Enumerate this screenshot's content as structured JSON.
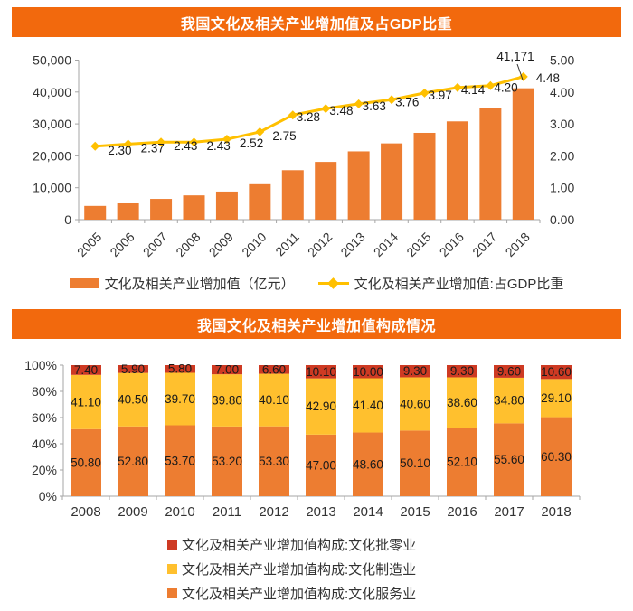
{
  "ui": {
    "banner_color": "#F2690D",
    "axis_color": "#A6A6A6",
    "tick_text_color": "#333333",
    "data_label_color": "#1A1A1A"
  },
  "chart_data": [
    {
      "type": "combo_bar_line",
      "title": "我国文化及相关产业增加值及占GDP比重",
      "categories": [
        "2005",
        "2006",
        "2007",
        "2008",
        "2009",
        "2010",
        "2011",
        "2012",
        "2013",
        "2014",
        "2015",
        "2016",
        "2017",
        "2018"
      ],
      "series": [
        {
          "name": "文化及相关产业增加值（亿元）",
          "type": "bar",
          "axis": "left",
          "color": "#ED7D31",
          "values": [
            4300,
            5100,
            6500,
            7600,
            8800,
            11100,
            15500,
            18100,
            21400,
            23900,
            27200,
            30800,
            34900,
            41171
          ],
          "values_note": "only 2018 labeled in chart; others estimated from gridlines"
        },
        {
          "name": "文化及相关产业增加值:占GDP比重",
          "type": "line",
          "axis": "right",
          "color": "#FFC000",
          "values": [
            2.3,
            2.37,
            2.43,
            2.43,
            2.52,
            2.75,
            3.28,
            3.48,
            3.63,
            3.76,
            3.97,
            4.14,
            4.2,
            4.48
          ],
          "labels": [
            "2.30",
            "2.37",
            "2.43",
            "2.43",
            "2.52",
            "2.75",
            "3.28",
            "3.48",
            "3.63",
            "3.76",
            "3.97",
            "4.14",
            "4.20",
            "4.48"
          ]
        }
      ],
      "left_axis": {
        "min": 0,
        "max": 50000,
        "step": 10000,
        "tick_labels": [
          "0",
          "10,000",
          "20,000",
          "30,000",
          "40,000",
          "50,000"
        ]
      },
      "right_axis": {
        "min": 0,
        "max": 5,
        "step": 1,
        "tick_labels": [
          "0.00",
          "1.00",
          "2.00",
          "3.00",
          "4.00",
          "5.00"
        ]
      },
      "annotations": [
        {
          "text": "41,171",
          "target_year": "2018"
        }
      ],
      "grid": false,
      "legend_position": "bottom"
    },
    {
      "type": "stacked_bar_100",
      "title": "我国文化及相关产业增加值构成情况",
      "categories": [
        "2008",
        "2009",
        "2010",
        "2011",
        "2012",
        "2013",
        "2014",
        "2015",
        "2016",
        "2017",
        "2018"
      ],
      "series": [
        {
          "name": "文化及相关产业增加值构成:文化服务业",
          "color": "#ED7D31",
          "values": [
            50.8,
            52.8,
            53.7,
            53.2,
            53.3,
            47.0,
            48.6,
            50.1,
            52.1,
            55.6,
            60.3
          ],
          "labels": [
            "50.80",
            "52.80",
            "53.70",
            "53.20",
            "53.30",
            "47.00",
            "48.60",
            "50.10",
            "52.10",
            "55.60",
            "60.30"
          ]
        },
        {
          "name": "文化及相关产业增加值构成:文化制造业",
          "color": "#FFC02E",
          "values": [
            41.1,
            40.5,
            39.7,
            39.8,
            40.1,
            42.9,
            41.4,
            40.6,
            38.6,
            34.8,
            29.1
          ],
          "labels": [
            "41.10",
            "40.50",
            "39.70",
            "39.80",
            "40.10",
            "42.90",
            "41.40",
            "40.60",
            "38.60",
            "34.80",
            "29.10"
          ]
        },
        {
          "name": "文化及相关产业增加值构成:文化批零业",
          "color": "#CE3A23",
          "values": [
            7.4,
            5.9,
            5.8,
            7.0,
            6.6,
            10.1,
            10.0,
            9.3,
            9.3,
            9.6,
            10.6
          ],
          "labels": [
            "7.40",
            "5.90",
            "5.80",
            "7.00",
            "6.60",
            "10.10",
            "10.00",
            "9.30",
            "9.30",
            "9.60",
            "10.60"
          ]
        }
      ],
      "y_axis": {
        "min": 0,
        "max": 100,
        "step": 20,
        "tick_labels": [
          "0%",
          "20%",
          "40%",
          "60%",
          "80%",
          "100%"
        ]
      },
      "grid": false,
      "legend_position": "bottom",
      "legend_order_top_to_bottom": [
        "文化批零业(red)",
        "文化制造业(yellow)",
        "文化服务业(orange)"
      ]
    }
  ]
}
